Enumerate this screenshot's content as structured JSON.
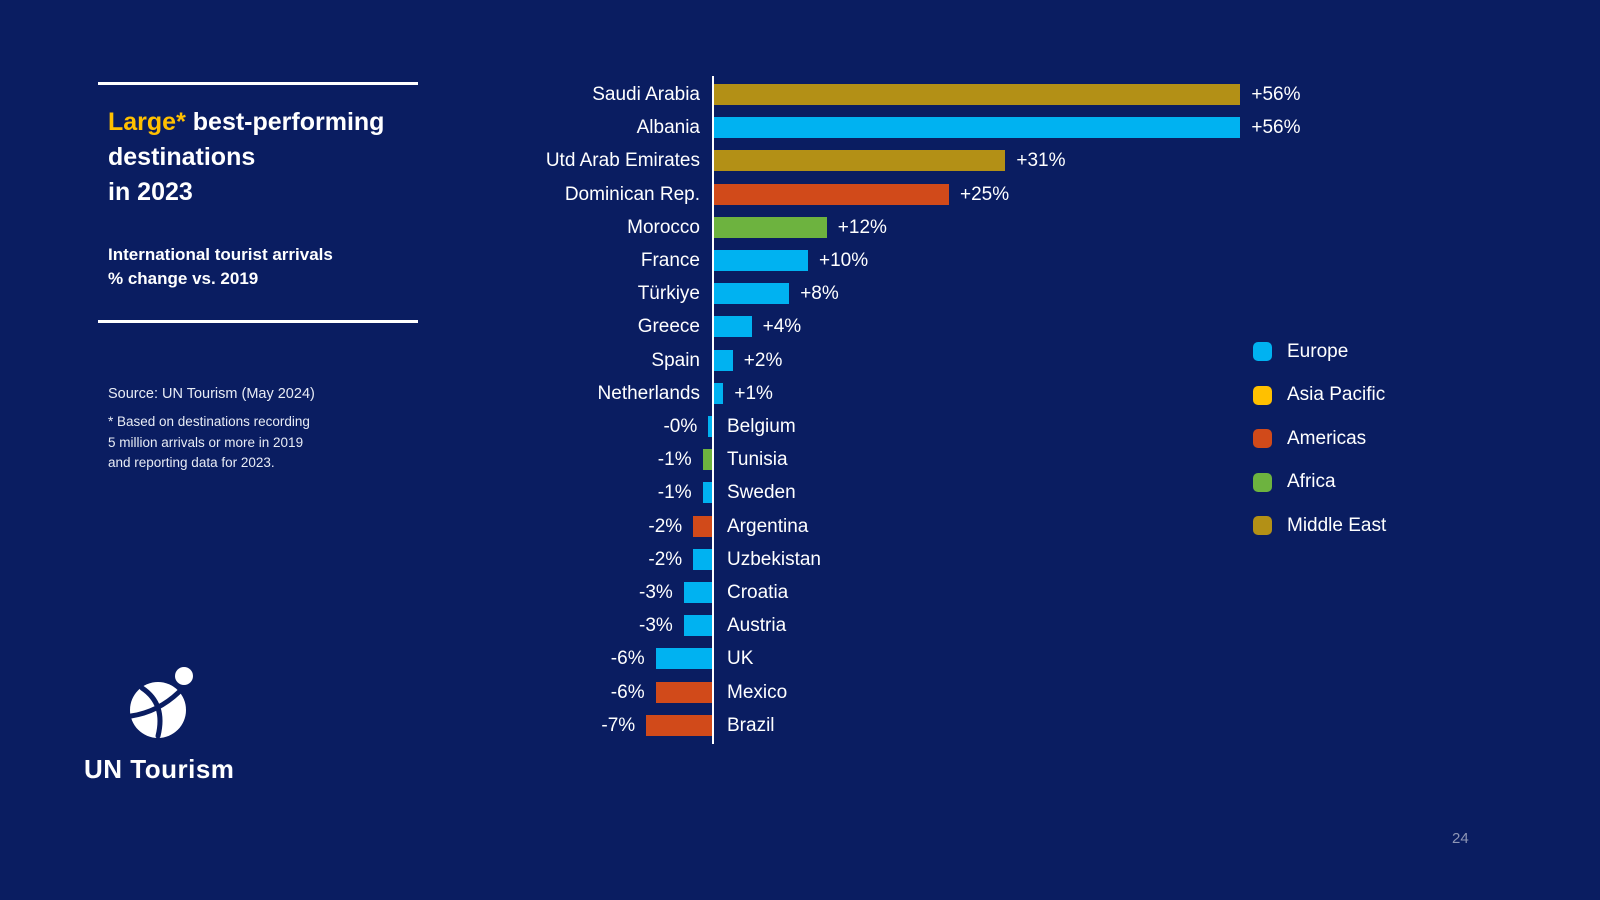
{
  "slide": {
    "title": {
      "highlight": "Large*",
      "rest_line1": "best-performing",
      "line2": "destinations",
      "line3": "in 2023"
    },
    "subtitle_line1": "International tourist arrivals",
    "subtitle_line2": "% change vs. 2019",
    "source": "Source: UN Tourism (May 2024)",
    "footnote_line1": "*  Based on destinations recording",
    "footnote_line2": "5 million arrivals or more in 2019",
    "footnote_line3": "and reporting data for 2023.",
    "logo_text": "UN Tourism",
    "page_number": "24"
  },
  "colors": {
    "background": "#0a1d61",
    "highlight": "#ffc000",
    "europe": "#00b2f1",
    "asia_pacific": "#ffc000",
    "americas": "#d14a1a",
    "africa": "#6db33f",
    "middle_east": "#b39016"
  },
  "legend": [
    {
      "label": "Europe",
      "region": "europe"
    },
    {
      "label": "Asia Pacific",
      "region": "asia_pacific"
    },
    {
      "label": "Americas",
      "region": "americas"
    },
    {
      "label": "Africa",
      "region": "africa"
    },
    {
      "label": "Middle East",
      "region": "middle_east"
    }
  ],
  "chart_data": {
    "type": "bar",
    "orientation": "horizontal",
    "title": "Large* best-performing destinations in 2023",
    "xlabel": "International tourist arrivals % change vs. 2019",
    "x_range": [
      -10,
      60
    ],
    "bars": [
      {
        "country": "Saudi Arabia",
        "value": 56,
        "label": "+56%",
        "region": "middle_east"
      },
      {
        "country": "Albania",
        "value": 56,
        "label": "+56%",
        "region": "europe"
      },
      {
        "country": "Utd Arab Emirates",
        "value": 31,
        "label": "+31%",
        "region": "middle_east"
      },
      {
        "country": "Dominican Rep.",
        "value": 25,
        "label": "+25%",
        "region": "americas"
      },
      {
        "country": "Morocco",
        "value": 12,
        "label": "+12%",
        "region": "africa"
      },
      {
        "country": "France",
        "value": 10,
        "label": "+10%",
        "region": "europe"
      },
      {
        "country": "Türkiye",
        "value": 8,
        "label": "+8%",
        "region": "europe"
      },
      {
        "country": "Greece",
        "value": 4,
        "label": "+4%",
        "region": "europe"
      },
      {
        "country": "Spain",
        "value": 2,
        "label": "+2%",
        "region": "europe"
      },
      {
        "country": "Netherlands",
        "value": 1,
        "label": "+1%",
        "region": "europe"
      },
      {
        "country": "Belgium",
        "value": -0.4,
        "label": "-0%",
        "region": "europe"
      },
      {
        "country": "Tunisia",
        "value": -1,
        "label": "-1%",
        "region": "africa"
      },
      {
        "country": "Sweden",
        "value": -1,
        "label": "-1%",
        "region": "europe"
      },
      {
        "country": "Argentina",
        "value": -2,
        "label": "-2%",
        "region": "americas"
      },
      {
        "country": "Uzbekistan",
        "value": -2,
        "label": "-2%",
        "region": "europe"
      },
      {
        "country": "Croatia",
        "value": -3,
        "label": "-3%",
        "region": "europe"
      },
      {
        "country": "Austria",
        "value": -3,
        "label": "-3%",
        "region": "europe"
      },
      {
        "country": "UK",
        "value": -6,
        "label": "-6%",
        "region": "europe"
      },
      {
        "country": "Mexico",
        "value": -6,
        "label": "-6%",
        "region": "americas"
      },
      {
        "country": "Brazil",
        "value": -7,
        "label": "-7%",
        "region": "americas"
      }
    ]
  }
}
